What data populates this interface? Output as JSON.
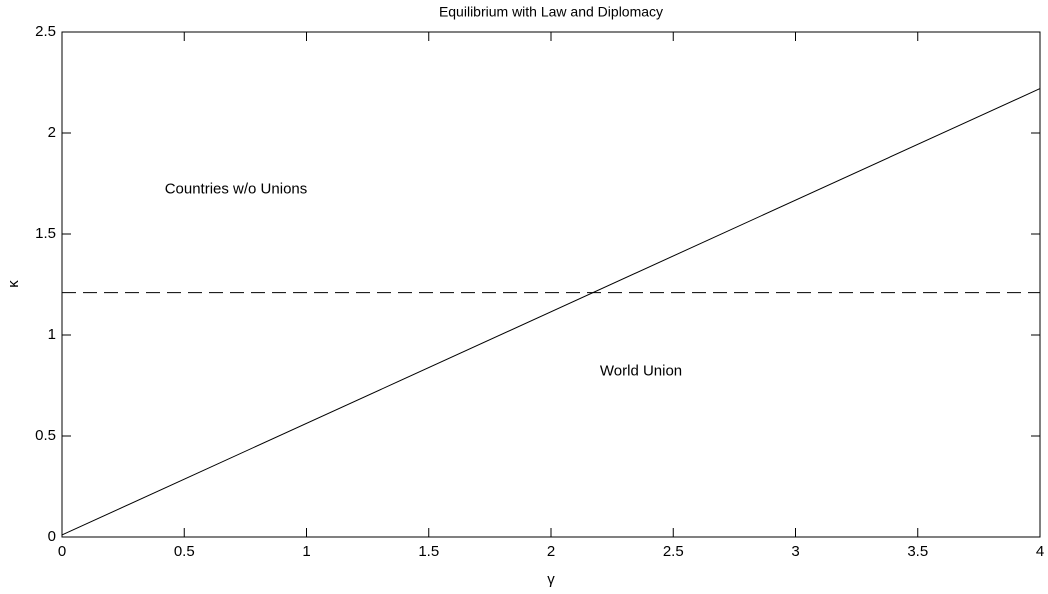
{
  "chart_data": {
    "type": "line",
    "title": "Equilibrium with Law and Diplomacy",
    "x_label": "γ",
    "y_label": "κ",
    "xlim": [
      0,
      4
    ],
    "ylim": [
      0,
      2.5
    ],
    "xticks": [
      0,
      0.5,
      1,
      1.5,
      2,
      2.5,
      3,
      3.5,
      4
    ],
    "yticks": [
      0,
      0.5,
      1,
      1.5,
      2,
      2.5
    ],
    "grid": false,
    "box": true,
    "series": [
      {
        "color": "#000000",
        "dash": false,
        "x": [
          0,
          4
        ],
        "values": [
          0.01,
          2.22
        ]
      },
      {
        "color": "#000000",
        "dash": true,
        "x": [
          0,
          4
        ],
        "values": [
          1.21,
          1.21
        ]
      }
    ],
    "annotations": [
      {
        "text": "Countries w/o Unions",
        "x": 0.42,
        "y": 1.72
      },
      {
        "text": "World Union",
        "x": 2.2,
        "y": 0.82
      }
    ]
  }
}
